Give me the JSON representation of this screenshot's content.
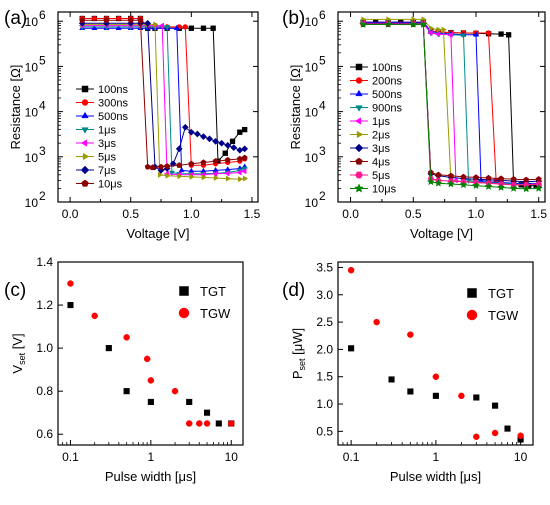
{
  "chart_data": [
    {
      "panel": "(a)",
      "type": "line",
      "xlabel": "Voltage [V]",
      "ylabel": "Resistance [Ω]",
      "xlim": [
        -0.1,
        1.55
      ],
      "ylim": [
        100,
        1600000
      ],
      "yscale": "log",
      "x_ticks": [
        0.0,
        0.5,
        1.0,
        1.5
      ],
      "x_tick_labels": [
        "0.0",
        "0.5",
        "1.0",
        "1.5"
      ],
      "y_tick_labels": [
        "10",
        "10",
        "10",
        "10",
        "10"
      ],
      "y_tick_exponents": [
        "2",
        "3",
        "4",
        "5",
        "6"
      ],
      "legend_position": "left",
      "series": [
        {
          "name": "100ns",
          "color": "#000000",
          "marker": "square",
          "x": [
            0.1,
            0.2,
            0.3,
            0.4,
            0.5,
            0.58,
            0.64,
            0.7,
            0.8,
            0.9,
            1.0,
            1.1,
            1.18,
            1.22,
            1.28,
            1.34,
            1.4,
            1.44
          ],
          "y": [
            1150000,
            1150000,
            1150000,
            1150000,
            1150000,
            1150000,
            700000,
            700000,
            700000,
            700000,
            700000,
            700000,
            700000,
            800,
            1200,
            2200,
            3500,
            4000
          ]
        },
        {
          "name": "300ns",
          "color": "#ff0000",
          "marker": "circle",
          "x": [
            0.1,
            0.2,
            0.3,
            0.4,
            0.5,
            0.58,
            0.64,
            0.7,
            0.8,
            0.9,
            0.95,
            1.0,
            1.1,
            1.2,
            1.3,
            1.4,
            1.44
          ],
          "y": [
            1150000,
            1150000,
            1150000,
            1150000,
            1150000,
            1150000,
            750000,
            750000,
            750000,
            750000,
            750000,
            650,
            650,
            700,
            750,
            800,
            900
          ]
        },
        {
          "name": "500ns",
          "color": "#0000ff",
          "marker": "triangle-up",
          "x": [
            0.1,
            0.2,
            0.3,
            0.4,
            0.5,
            0.58,
            0.64,
            0.7,
            0.8,
            0.88,
            0.92,
            1.0,
            1.1,
            1.2,
            1.3,
            1.4,
            1.44
          ],
          "y": [
            700000,
            700000,
            700000,
            700000,
            700000,
            700000,
            700000,
            700000,
            700000,
            700000,
            500,
            480,
            480,
            500,
            520,
            550,
            600
          ]
        },
        {
          "name": "1μs",
          "color": "#008b8b",
          "marker": "triangle-down",
          "x": [
            0.1,
            0.3,
            0.5,
            0.58,
            0.64,
            0.7,
            0.8,
            0.84,
            0.9,
            1.0,
            1.1,
            1.2,
            1.3,
            1.4,
            1.44
          ],
          "y": [
            750000,
            750000,
            750000,
            750000,
            750000,
            750000,
            750000,
            450,
            420,
            420,
            420,
            430,
            450,
            500,
            550
          ]
        },
        {
          "name": "3μs",
          "color": "#ff00ff",
          "marker": "triangle-left",
          "x": [
            0.1,
            0.3,
            0.5,
            0.58,
            0.64,
            0.7,
            0.76,
            0.8,
            0.9,
            1.0,
            1.1,
            1.2,
            1.3,
            1.4,
            1.44
          ],
          "y": [
            800000,
            800000,
            800000,
            800000,
            800000,
            800000,
            800000,
            420,
            400,
            400,
            400,
            420,
            430,
            450,
            480
          ]
        },
        {
          "name": "5μs",
          "color": "#9b9b00",
          "marker": "triangle-right",
          "x": [
            0.1,
            0.3,
            0.5,
            0.58,
            0.64,
            0.7,
            0.74,
            0.8,
            0.9,
            1.0,
            1.1,
            1.2,
            1.3,
            1.4,
            1.44
          ],
          "y": [
            850000,
            850000,
            850000,
            850000,
            850000,
            850000,
            400,
            380,
            370,
            360,
            350,
            340,
            330,
            320,
            330
          ]
        },
        {
          "name": "7μs",
          "color": "#00008b",
          "marker": "diamond",
          "x": [
            0.1,
            0.3,
            0.5,
            0.58,
            0.64,
            0.7,
            0.75,
            0.8,
            0.85,
            0.9,
            0.95,
            1.0,
            1.05,
            1.1,
            1.15,
            1.2,
            1.25,
            1.3,
            1.35,
            1.4,
            1.44
          ],
          "y": [
            900000,
            900000,
            900000,
            900000,
            900000,
            600,
            500,
            550,
            700,
            1500,
            4500,
            3500,
            3200,
            2800,
            2500,
            2200,
            2000,
            1800,
            1600,
            1400,
            1500
          ]
        },
        {
          "name": "10μs",
          "color": "#8b0000",
          "marker": "pentagon",
          "x": [
            0.1,
            0.3,
            0.5,
            0.58,
            0.64,
            0.68,
            0.75,
            0.8,
            0.9,
            1.0,
            1.1,
            1.2,
            1.3,
            1.4,
            1.44
          ],
          "y": [
            1050000,
            1050000,
            1050000,
            1050000,
            600,
            580,
            600,
            620,
            650,
            700,
            750,
            800,
            850,
            900,
            950
          ]
        }
      ]
    },
    {
      "panel": "(b)",
      "type": "line",
      "xlabel": "Voltage [V]",
      "ylabel": "Resistance [Ω]",
      "xlim": [
        -0.1,
        1.55
      ],
      "ylim": [
        100,
        1600000
      ],
      "yscale": "log",
      "x_ticks": [
        0.0,
        0.5,
        1.0,
        1.5
      ],
      "x_tick_labels": [
        "0.0",
        "0.5",
        "1.0",
        "1.5"
      ],
      "y_tick_labels": [
        "10",
        "10",
        "10",
        "10",
        "10"
      ],
      "y_tick_exponents": [
        "2",
        "3",
        "4",
        "5",
        "6"
      ],
      "legend_position": "right",
      "series": [
        {
          "name": "100ns",
          "color": "#000000",
          "marker": "square",
          "x": [
            0.1,
            0.2,
            0.3,
            0.4,
            0.5,
            0.58,
            0.64,
            0.7,
            0.8,
            0.9,
            1.0,
            1.1,
            1.2,
            1.26,
            1.3,
            1.36,
            1.42,
            1.48,
            1.5
          ],
          "y": [
            950000,
            950000,
            950000,
            950000,
            950000,
            950000,
            600000,
            580000,
            560000,
            550000,
            540000,
            530000,
            520000,
            500000,
            250,
            240,
            230,
            230,
            230
          ]
        },
        {
          "name": "200ns",
          "color": "#ff0000",
          "marker": "circle",
          "x": [
            0.1,
            0.3,
            0.5,
            0.58,
            0.64,
            0.7,
            0.8,
            0.9,
            1.0,
            1.1,
            1.16,
            1.2,
            1.3,
            1.4,
            1.5
          ],
          "y": [
            950000,
            950000,
            950000,
            950000,
            600000,
            580000,
            560000,
            550000,
            550000,
            550000,
            300,
            260,
            250,
            240,
            250
          ]
        },
        {
          "name": "500ns",
          "color": "#0000ff",
          "marker": "triangle-up",
          "x": [
            0.1,
            0.3,
            0.5,
            0.58,
            0.64,
            0.7,
            0.8,
            0.9,
            1.0,
            1.04,
            1.1,
            1.2,
            1.3,
            1.4,
            1.5
          ],
          "y": [
            950000,
            950000,
            950000,
            950000,
            600000,
            550000,
            520000,
            500000,
            500000,
            300,
            280,
            270,
            260,
            250,
            260
          ]
        },
        {
          "name": "900ns",
          "color": "#008b8b",
          "marker": "triangle-down",
          "x": [
            0.1,
            0.3,
            0.5,
            0.58,
            0.64,
            0.7,
            0.8,
            0.9,
            0.94,
            1.0,
            1.1,
            1.2,
            1.3,
            1.4,
            1.5
          ],
          "y": [
            900000,
            900000,
            900000,
            900000,
            550000,
            520000,
            500000,
            490000,
            300,
            280,
            270,
            260,
            250,
            240,
            250
          ]
        },
        {
          "name": "1μs",
          "color": "#ff00ff",
          "marker": "triangle-left",
          "x": [
            0.1,
            0.3,
            0.5,
            0.58,
            0.64,
            0.7,
            0.8,
            0.84,
            0.9,
            1.0,
            1.1,
            1.2,
            1.3,
            1.4,
            1.5
          ],
          "y": [
            900000,
            900000,
            900000,
            900000,
            550000,
            520000,
            500000,
            300,
            280,
            270,
            260,
            250,
            240,
            240,
            250
          ]
        },
        {
          "name": "2μs",
          "color": "#9b9b00",
          "marker": "triangle-right",
          "x": [
            0.1,
            0.3,
            0.5,
            0.58,
            0.64,
            0.7,
            0.74,
            0.8,
            0.9,
            1.0,
            1.1,
            1.2,
            1.3,
            1.4,
            1.5
          ],
          "y": [
            1100000,
            1100000,
            1100000,
            1100000,
            700000,
            650000,
            650000,
            300,
            280,
            270,
            260,
            250,
            240,
            240,
            250
          ]
        },
        {
          "name": "3μs",
          "color": "#00008b",
          "marker": "diamond",
          "x": [
            0.1,
            0.3,
            0.5,
            0.58,
            0.64,
            0.7,
            0.8,
            0.9,
            1.0,
            1.1,
            1.2,
            1.3,
            1.4,
            1.5
          ],
          "y": [
            900000,
            900000,
            900000,
            900000,
            420,
            380,
            350,
            330,
            320,
            310,
            300,
            290,
            280,
            290
          ]
        },
        {
          "name": "4μs",
          "color": "#8b0000",
          "marker": "pentagon",
          "x": [
            0.1,
            0.3,
            0.5,
            0.58,
            0.64,
            0.7,
            0.8,
            0.9,
            1.0,
            1.1,
            1.2,
            1.3,
            1.4,
            1.5
          ],
          "y": [
            850000,
            850000,
            850000,
            850000,
            450,
            400,
            380,
            360,
            350,
            340,
            330,
            320,
            310,
            320
          ]
        },
        {
          "name": "5μs",
          "color": "#ff1493",
          "marker": "hexagon",
          "x": [
            0.1,
            0.3,
            0.5,
            0.58,
            0.64,
            0.7,
            0.8,
            0.9,
            1.0,
            1.1,
            1.2,
            1.3,
            1.4,
            1.5
          ],
          "y": [
            880000,
            880000,
            880000,
            880000,
            330,
            300,
            290,
            280,
            270,
            260,
            250,
            240,
            240,
            250
          ]
        },
        {
          "name": "10μs",
          "color": "#008000",
          "marker": "star",
          "x": [
            0.1,
            0.3,
            0.5,
            0.58,
            0.64,
            0.7,
            0.8,
            0.9,
            1.0,
            1.1,
            1.2,
            1.3,
            1.4,
            1.5
          ],
          "y": [
            850000,
            850000,
            850000,
            850000,
            280,
            260,
            250,
            240,
            230,
            220,
            210,
            200,
            195,
            200
          ]
        }
      ]
    },
    {
      "panel": "(c)",
      "type": "scatter",
      "xlabel": "Pulse width [μs]",
      "ylabel_main": "V",
      "ylabel_sub": "set",
      "ylabel_unit": " [V]",
      "xscale": "log",
      "xlim": [
        0.07,
        14
      ],
      "ylim": [
        0.55,
        1.4
      ],
      "x_ticks": [
        0.1,
        1,
        10
      ],
      "x_tick_labels": [
        "0.1",
        "1",
        "10"
      ],
      "y_ticks": [
        0.6,
        0.8,
        1.0,
        1.2,
        1.4
      ],
      "y_tick_labels": [
        "0.6",
        "0.8",
        "1.0",
        "1.2",
        "1.4"
      ],
      "legend_position": "top-right",
      "series": [
        {
          "name": "TGT",
          "color": "#000000",
          "marker": "square",
          "x": [
            0.1,
            0.3,
            0.5,
            1,
            3,
            5,
            7,
            10
          ],
          "y": [
            1.2,
            1.0,
            0.8,
            0.75,
            0.75,
            0.7,
            0.65,
            0.65
          ]
        },
        {
          "name": "TGW",
          "color": "#ff0000",
          "marker": "circle",
          "x": [
            0.1,
            0.2,
            0.5,
            0.9,
            1,
            2,
            3,
            4,
            5,
            10
          ],
          "y": [
            1.3,
            1.15,
            1.05,
            0.95,
            0.85,
            0.8,
            0.65,
            0.65,
            0.65,
            0.65
          ]
        }
      ]
    },
    {
      "panel": "(d)",
      "type": "scatter",
      "xlabel": "Pulse width [μs]",
      "ylabel_main": "P",
      "ylabel_sub": "set",
      "ylabel_unit": " [μW]",
      "xscale": "log",
      "xlim": [
        0.07,
        14
      ],
      "ylim": [
        0.25,
        3.6
      ],
      "x_ticks": [
        0.1,
        1,
        10
      ],
      "x_tick_labels": [
        "0.1",
        "1",
        "10"
      ],
      "y_ticks": [
        0.5,
        1.0,
        1.5,
        2.0,
        2.5,
        3.0,
        3.5
      ],
      "y_tick_labels": [
        "0.5",
        "1.0",
        "1.5",
        "2.0",
        "2.5",
        "3.0",
        "3.5"
      ],
      "legend_position": "top-right",
      "series": [
        {
          "name": "TGT",
          "color": "#000000",
          "marker": "square",
          "x": [
            0.1,
            0.3,
            0.5,
            1,
            3,
            5,
            7,
            10
          ],
          "y": [
            2.02,
            1.45,
            1.23,
            1.15,
            1.12,
            0.97,
            0.55,
            0.35
          ]
        },
        {
          "name": "TGW",
          "color": "#ff0000",
          "marker": "circle",
          "x": [
            0.1,
            0.2,
            0.5,
            1,
            2,
            3,
            5,
            10
          ],
          "y": [
            3.45,
            2.5,
            2.27,
            1.5,
            1.15,
            0.4,
            0.47,
            0.42
          ]
        }
      ]
    }
  ]
}
